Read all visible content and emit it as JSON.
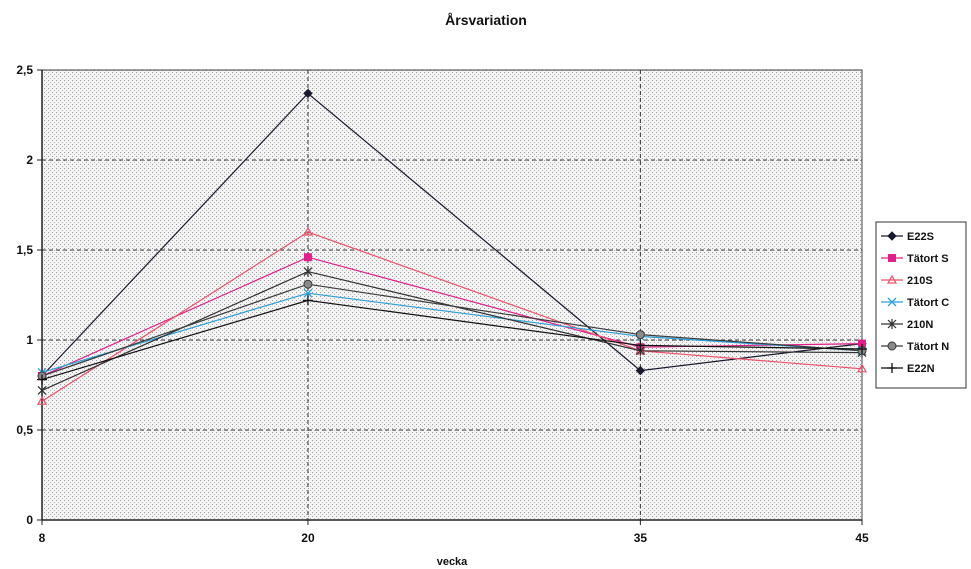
{
  "chart_data": {
    "type": "line",
    "title": "Årsvariation",
    "xlabel": "vecka",
    "ylabel": "",
    "categories": [
      "8",
      "20",
      "35",
      "45"
    ],
    "ylim": [
      0,
      2.5
    ],
    "yticks": [
      "0",
      "0,5",
      "1",
      "1,5",
      "2",
      "2,5"
    ],
    "grid": true,
    "legend_position": "right",
    "series": [
      {
        "name": "E22S",
        "values": [
          0.8,
          2.37,
          0.83,
          0.98
        ],
        "color": "#1a1a2e",
        "marker": "diamond"
      },
      {
        "name": "Tätort S",
        "values": [
          0.8,
          1.46,
          0.96,
          0.98
        ],
        "color": "#e0208a",
        "marker": "square"
      },
      {
        "name": "210S",
        "values": [
          0.66,
          1.6,
          0.94,
          0.84
        ],
        "color": "#f0506a",
        "marker": "triangle"
      },
      {
        "name": "Tätort C",
        "values": [
          0.82,
          1.26,
          1.02,
          0.94
        ],
        "color": "#2a9fd8",
        "marker": "x"
      },
      {
        "name": "210N",
        "values": [
          0.72,
          1.38,
          0.94,
          0.93
        ],
        "color": "#303030",
        "marker": "star"
      },
      {
        "name": "Tätort N",
        "values": [
          0.8,
          1.31,
          1.03,
          0.94
        ],
        "color": "#3a3a3a",
        "marker": "circle"
      },
      {
        "name": "E22N",
        "values": [
          0.78,
          1.22,
          0.97,
          0.95
        ],
        "color": "#111111",
        "marker": "plus"
      }
    ]
  }
}
